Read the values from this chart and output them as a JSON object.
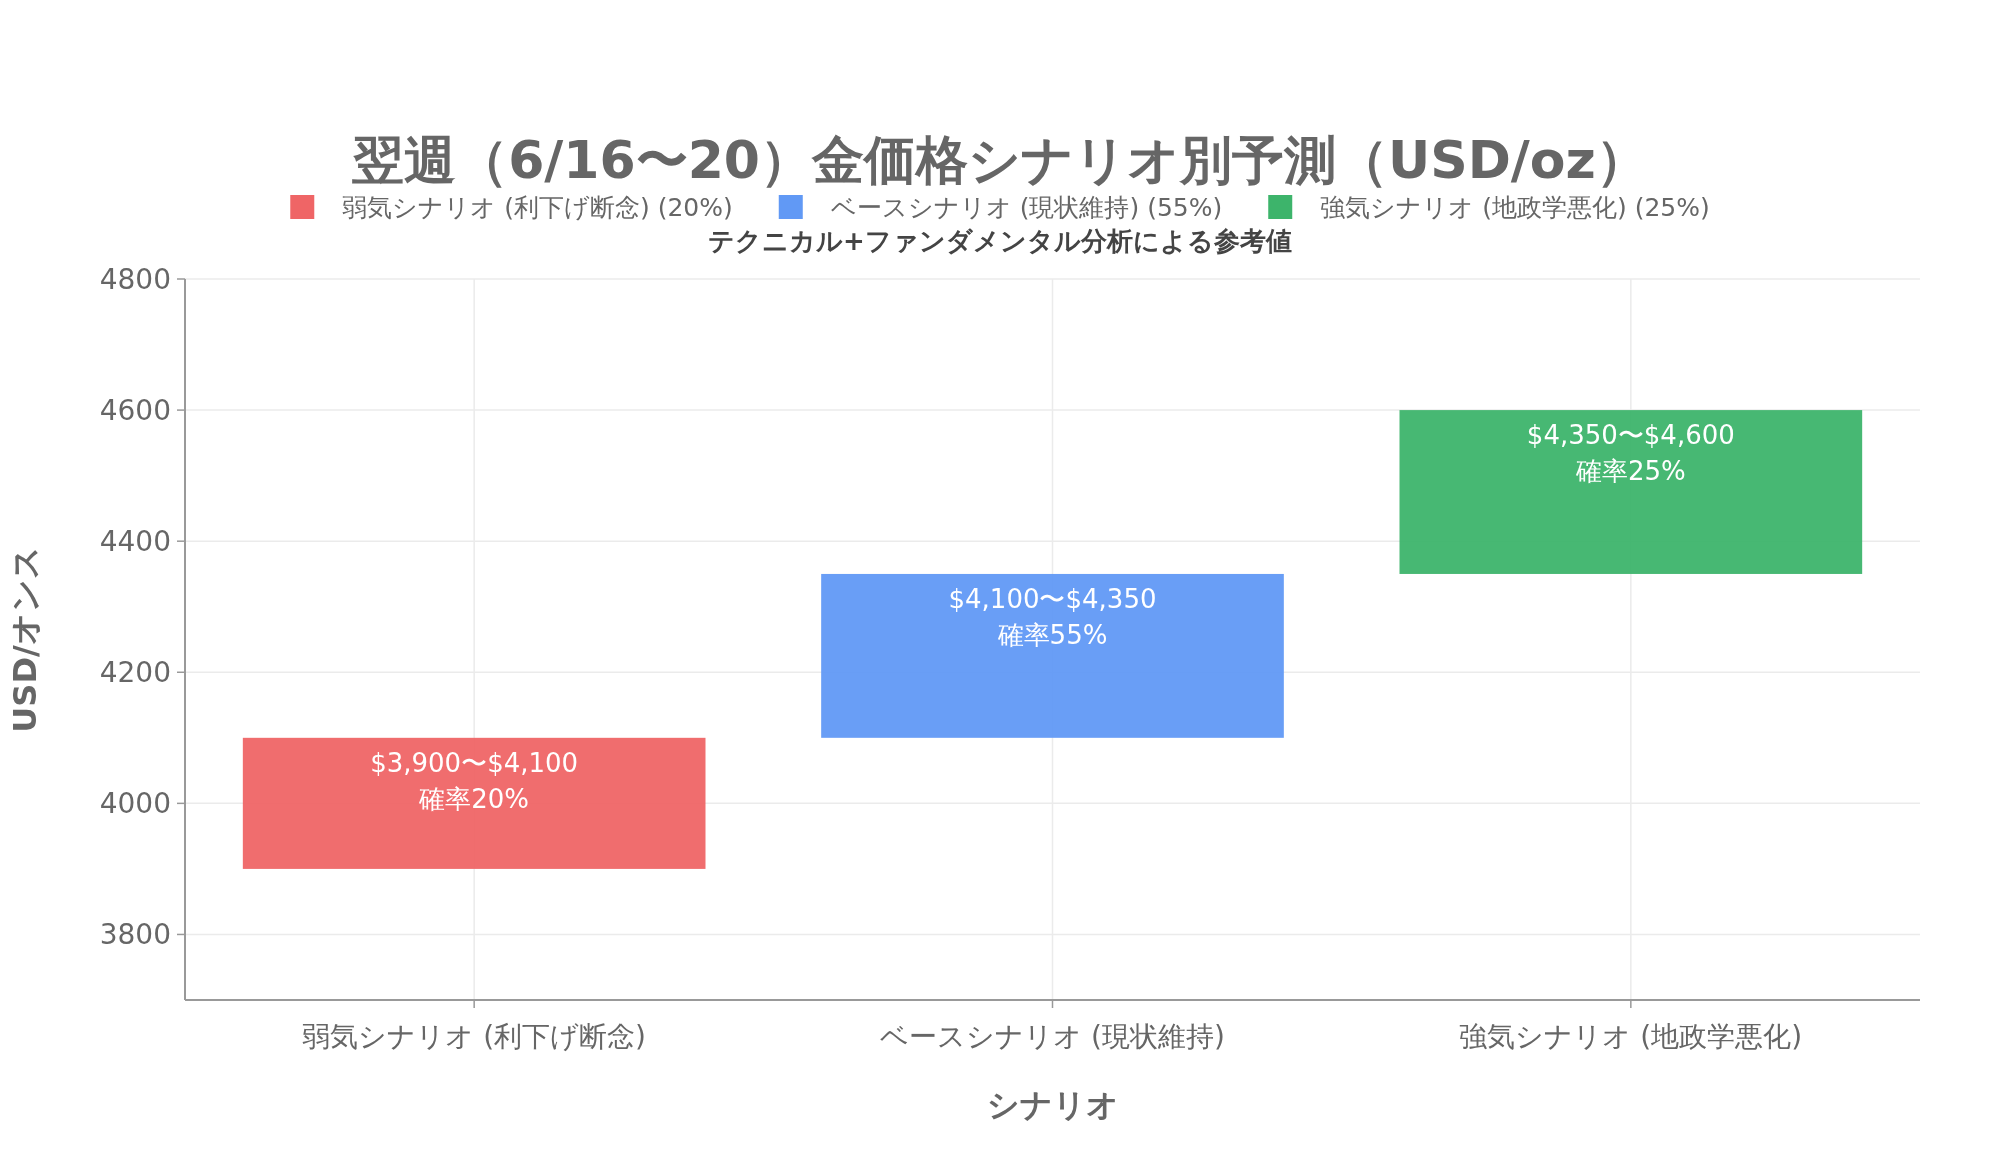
{
  "chart_data": {
    "type": "bar",
    "title": "翌週（6/16〜20）金価格シナリオ別予測（USD/oz）",
    "subtitle": "テクニカル+ファンダメンタル分析による参考値",
    "xlabel": "シナリオ",
    "ylabel": "USD/オンス",
    "categories": [
      "弱気シナリオ (利下げ断念)",
      "ベースシナリオ (現状維持)",
      "強気シナリオ (地政学悪化)"
    ],
    "series": [
      {
        "name": "弱気シナリオ (利下げ断念) (20%)",
        "color": "#ef6566",
        "base": [
          3900,
          null,
          null
        ],
        "values": [
          200,
          null,
          null
        ]
      },
      {
        "name": "ベースシナリオ (現状維持) (55%)",
        "color": "#6199f5",
        "base": [
          null,
          4100,
          null
        ],
        "values": [
          null,
          250,
          null
        ]
      },
      {
        "name": "強気シナリオ (地政学悪化) (25%)",
        "color": "#3db46b",
        "base": [
          null,
          null,
          4350
        ],
        "values": [
          null,
          null,
          250
        ]
      }
    ],
    "annotations": [
      {
        "text": "$3,900〜$4,100\n確率20%",
        "x": "弱気シナリオ (利下げ断念)",
        "y": 4100
      },
      {
        "text": "$4,100〜$4,350\n確率55%",
        "x": "ベースシナリオ (現状維持)",
        "y": 4350
      },
      {
        "text": "$4,350〜$4,600\n確率25%",
        "x": "強気シナリオ (地政学悪化)",
        "y": 4600
      }
    ],
    "ylim": [
      3700,
      4800
    ],
    "yticks": [
      3800,
      4000,
      4200,
      4400,
      4600,
      4800
    ],
    "grid": true,
    "legend": "top"
  }
}
